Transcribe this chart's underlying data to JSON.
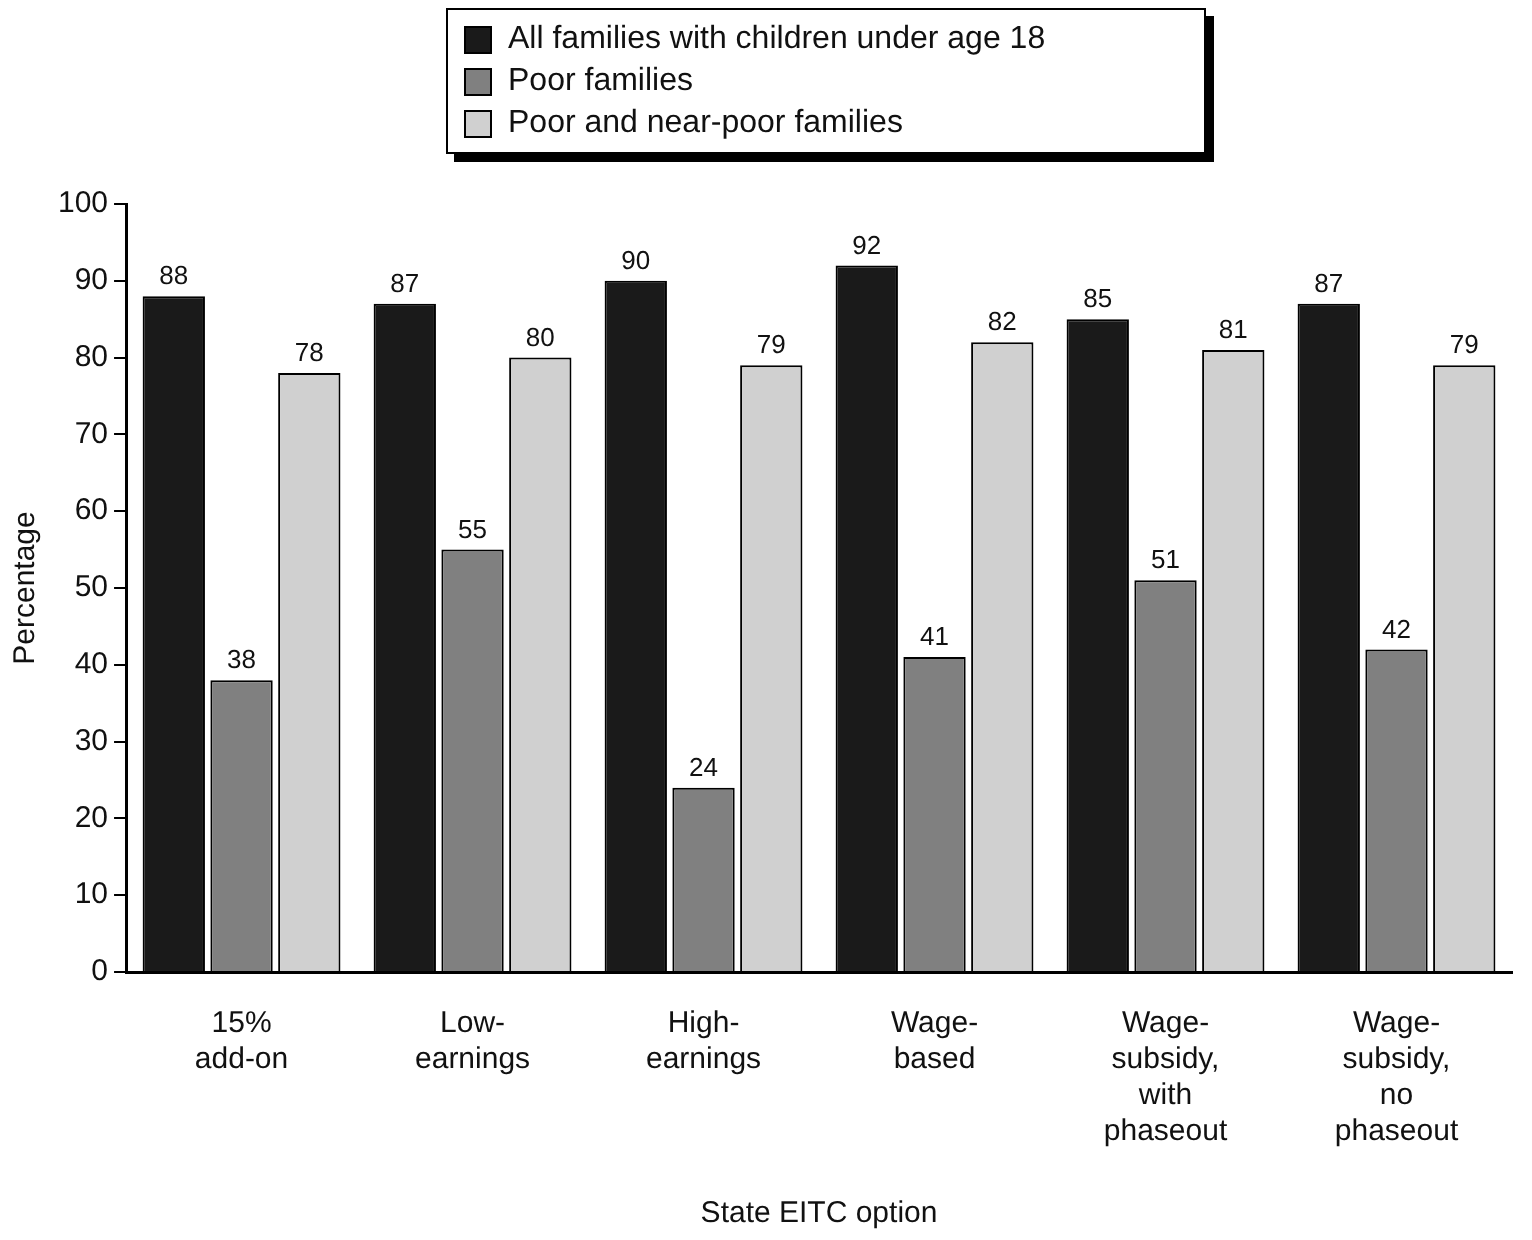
{
  "chart_data": {
    "type": "bar",
    "xlabel": "State EITC option",
    "ylabel": "Percentage",
    "categories": [
      "15%\nadd-on",
      "Low-\nearnings",
      "High-\nearnings",
      "Wage-\nbased",
      "Wage-\nsubsidy,\nwith\nphaseout",
      "Wage-\nsubsidy,\nno\nphaseout"
    ],
    "series": [
      {
        "name": "All families with children under age 18",
        "color": "#1a1a1a",
        "values": [
          88,
          87,
          90,
          92,
          85,
          87
        ]
      },
      {
        "name": "Poor families",
        "color": "#808080",
        "values": [
          38,
          55,
          24,
          41,
          51,
          42
        ]
      },
      {
        "name": "Poor and near-poor families",
        "color": "#d0d0d0",
        "values": [
          78,
          80,
          79,
          82,
          81,
          79
        ]
      }
    ],
    "ylim": [
      0,
      100
    ],
    "yticks": [
      0,
      10,
      20,
      30,
      40,
      50,
      60,
      70,
      80,
      90,
      100
    ],
    "grid": false,
    "legend": "top",
    "data_labels": true
  }
}
